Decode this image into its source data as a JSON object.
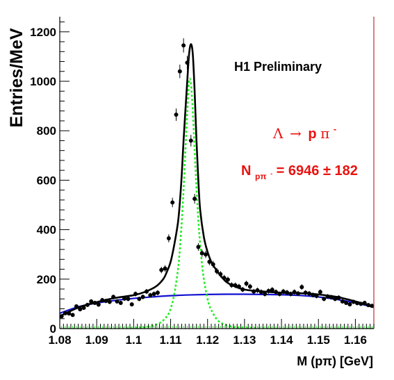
{
  "colors": {
    "total_fit": "#000000",
    "background_fit": "#1010d0",
    "signal_fit": "#22ee22",
    "annotation": "#e8130f",
    "frame_right": "#c03030",
    "points": "#000000"
  },
  "chart_data": {
    "type": "scatter",
    "xlabel": "M (pπ) [GeV]",
    "ylabel": "Entries/MeV",
    "xlim": [
      1.08,
      1.165
    ],
    "ylim": [
      0,
      1250
    ],
    "x_ticks": [
      "1.08",
      "1.09",
      "1.1",
      "1.11",
      "1.12",
      "1.13",
      "1.14",
      "1.15",
      "1.16"
    ],
    "y_ticks": [
      "0",
      "200",
      "400",
      "600",
      "800",
      "1000",
      "1200"
    ],
    "grid": false,
    "annotations": {
      "preliminary": "H1 Preliminary",
      "decay_lambda": "Λ",
      "decay_arrow": "→",
      "decay_p": "p",
      "decay_pi": "π",
      "decay_minus": "-",
      "yield_n": "N",
      "yield_sub": "pπ",
      "yield_sub_minus": "-",
      "yield_value": " = 6946 ± 182"
    },
    "series": [
      {
        "type": "scatter",
        "x": [
          1.0805,
          1.0815,
          1.0825,
          1.0835,
          1.0845,
          1.0855,
          1.0865,
          1.0875,
          1.0885,
          1.0895,
          1.0905,
          1.0915,
          1.0925,
          1.0935,
          1.0945,
          1.0955,
          1.0965,
          1.0975,
          1.0985,
          1.0995,
          1.1005,
          1.1015,
          1.1025,
          1.1035,
          1.1045,
          1.1055,
          1.1065,
          1.1075,
          1.1085,
          1.1095,
          1.1105,
          1.1115,
          1.1125,
          1.1135,
          1.1145,
          1.1155,
          1.1165,
          1.1175,
          1.1185,
          1.1195,
          1.1205,
          1.1215,
          1.1225,
          1.1235,
          1.1245,
          1.1255,
          1.1265,
          1.1275,
          1.1285,
          1.1295,
          1.1305,
          1.1315,
          1.1325,
          1.1335,
          1.1345,
          1.1355,
          1.1365,
          1.1375,
          1.1385,
          1.1395,
          1.1405,
          1.1415,
          1.1425,
          1.1435,
          1.1445,
          1.1455,
          1.1465,
          1.1475,
          1.1485,
          1.1495,
          1.1505,
          1.1515,
          1.1525,
          1.1535,
          1.1545,
          1.1555,
          1.1565,
          1.1575,
          1.1585,
          1.1595,
          1.1605,
          1.1615,
          1.1625,
          1.1635,
          1.1645
        ],
        "y": [
          50,
          62,
          61,
          55,
          90,
          78,
          84,
          96,
          110,
          104,
          97,
          115,
          112,
          108,
          128,
          110,
          104,
          121,
          120,
          98,
          140,
          120,
          128,
          150,
          135,
          140,
          145,
          237,
          243,
          365,
          510,
          865,
          1040,
          1145,
          1075,
          760,
          525,
          330,
          305,
          300,
          270,
          260,
          232,
          220,
          205,
          198,
          176,
          175,
          170,
          158,
          182,
          170,
          150,
          155,
          148,
          140,
          152,
          157,
          148,
          140,
          150,
          146,
          140,
          148,
          142,
          168,
          145,
          142,
          136,
          132,
          148,
          120,
          130,
          127,
          120,
          125,
          110,
          104,
          98,
          108,
          103,
          100,
          104,
          95,
          92
        ]
      },
      {
        "name": "",
        "type": "line",
        "role": "total fit",
        "x": [
          1.08,
          1.085,
          1.09,
          1.095,
          1.1,
          1.103,
          1.106,
          1.108,
          1.109,
          1.11,
          1.111,
          1.112,
          1.1125,
          1.113,
          1.1135,
          1.1145,
          1.115,
          1.1155,
          1.116,
          1.1165,
          1.117,
          1.1175,
          1.118,
          1.119,
          1.12,
          1.121,
          1.122,
          1.124,
          1.126,
          1.13,
          1.135,
          1.14,
          1.145,
          1.15,
          1.155,
          1.16,
          1.165
        ],
        "y": [
          50,
          85,
          107,
          124,
          135,
          148,
          170,
          200,
          230,
          270,
          340,
          430,
          510,
          620,
          760,
          1000,
          1110,
          1150,
          1110,
          960,
          760,
          600,
          480,
          370,
          310,
          270,
          245,
          205,
          180,
          158,
          150,
          145,
          143,
          138,
          128,
          110,
          88
        ]
      },
      {
        "name": "",
        "type": "line",
        "role": "background fit",
        "x": [
          1.08,
          1.085,
          1.09,
          1.095,
          1.1,
          1.105,
          1.11,
          1.115,
          1.12,
          1.125,
          1.13,
          1.135,
          1.14,
          1.145,
          1.15,
          1.155,
          1.16,
          1.165
        ],
        "y": [
          62,
          88,
          103,
          114,
          122,
          128,
          133,
          136,
          138,
          139,
          139,
          138,
          137,
          134,
          128,
          118,
          104,
          86
        ]
      },
      {
        "name": "",
        "type": "line",
        "role": "signal fit",
        "x": [
          1.08,
          1.095,
          1.1,
          1.104,
          1.107,
          1.109,
          1.11,
          1.111,
          1.112,
          1.1125,
          1.113,
          1.1135,
          1.114,
          1.1145,
          1.115,
          1.1155,
          1.116,
          1.1165,
          1.117,
          1.1175,
          1.118,
          1.1185,
          1.119,
          1.12,
          1.121,
          1.123,
          1.126,
          1.13,
          1.14,
          1.165
        ],
        "y": [
          0,
          0,
          2,
          8,
          22,
          50,
          80,
          140,
          240,
          320,
          430,
          560,
          720,
          870,
          1000,
          990,
          880,
          720,
          570,
          440,
          340,
          260,
          200,
          120,
          75,
          30,
          10,
          3,
          0,
          0
        ]
      }
    ]
  }
}
